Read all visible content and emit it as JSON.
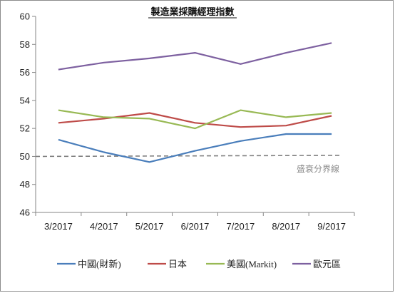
{
  "chart_data": {
    "type": "line",
    "title": "製造業採購經理指數",
    "categories": [
      "3/2017",
      "4/2017",
      "5/2017",
      "6/2017",
      "7/2017",
      "8/2017",
      "9/2017"
    ],
    "ylim": [
      46,
      60
    ],
    "yticks": [
      46,
      48,
      50,
      52,
      54,
      56,
      58,
      60
    ],
    "grid": false,
    "legend_position": "bottom",
    "series": [
      {
        "name": "中國(財新)",
        "color": "#4a7ebb",
        "values": [
          51.2,
          50.3,
          49.6,
          50.4,
          51.1,
          51.6,
          51.6
        ]
      },
      {
        "name": "日本",
        "color": "#be4b48",
        "values": [
          52.4,
          52.7,
          53.1,
          52.4,
          52.1,
          52.2,
          52.9
        ]
      },
      {
        "name": "美國(Markit)",
        "color": "#98b954",
        "values": [
          53.3,
          52.8,
          52.7,
          52.0,
          53.3,
          52.8,
          53.1
        ]
      },
      {
        "name": "歐元區",
        "color": "#7d60a0",
        "values": [
          56.2,
          56.7,
          57.0,
          57.4,
          56.6,
          57.4,
          58.1
        ]
      }
    ],
    "reference_line": {
      "label": "盛衰分界線",
      "value": 50.0,
      "color": "#7f7f7f"
    }
  }
}
